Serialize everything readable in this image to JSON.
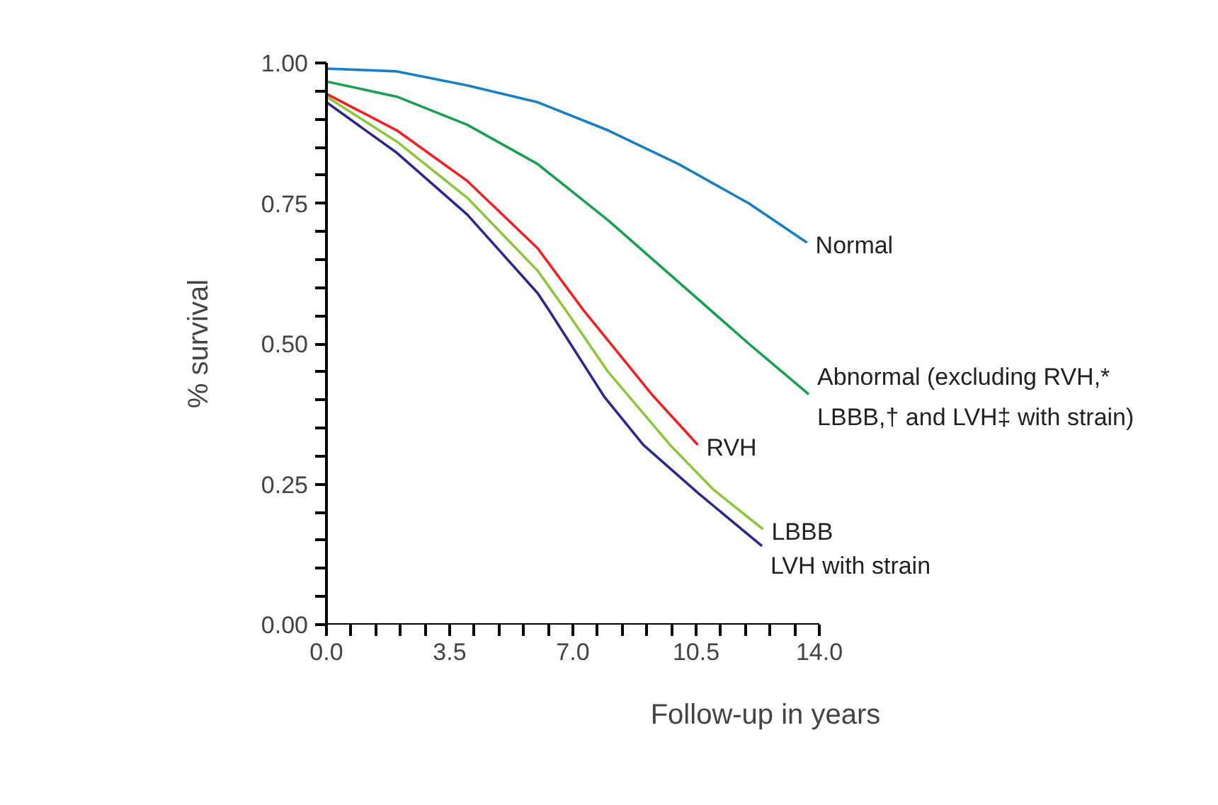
{
  "chart_data": {
    "type": "line",
    "xlabel": "Follow-up in years",
    "ylabel": "% survival",
    "xlim": [
      0,
      14
    ],
    "ylim": [
      0,
      1
    ],
    "xticks": [
      {
        "value": 0,
        "label": "0.0"
      },
      {
        "value": 0.7,
        "label": null
      },
      {
        "value": 1.4,
        "label": null
      },
      {
        "value": 2.1,
        "label": null
      },
      {
        "value": 2.8,
        "label": null
      },
      {
        "value": 3.5,
        "label": "3.5"
      },
      {
        "value": 4.2,
        "label": null
      },
      {
        "value": 4.9,
        "label": null
      },
      {
        "value": 5.6,
        "label": null
      },
      {
        "value": 6.3,
        "label": null
      },
      {
        "value": 7,
        "label": "7.0"
      },
      {
        "value": 7.7,
        "label": null
      },
      {
        "value": 8.4,
        "label": null
      },
      {
        "value": 9.1,
        "label": null
      },
      {
        "value": 9.8,
        "label": null
      },
      {
        "value": 10.5,
        "label": "10.5"
      },
      {
        "value": 11.2,
        "label": null
      },
      {
        "value": 11.9,
        "label": null
      },
      {
        "value": 12.6,
        "label": null
      },
      {
        "value": 13.3,
        "label": null
      },
      {
        "value": 14,
        "label": "14.0"
      }
    ],
    "yticks": [
      {
        "value": 0,
        "label": "0.00"
      },
      {
        "value": 0.05,
        "label": null
      },
      {
        "value": 0.1,
        "label": null
      },
      {
        "value": 0.15,
        "label": null
      },
      {
        "value": 0.2,
        "label": null
      },
      {
        "value": 0.25,
        "label": "0.25"
      },
      {
        "value": 0.3,
        "label": null
      },
      {
        "value": 0.35,
        "label": null
      },
      {
        "value": 0.4,
        "label": null
      },
      {
        "value": 0.45,
        "label": null
      },
      {
        "value": 0.5,
        "label": "0.50"
      },
      {
        "value": 0.55,
        "label": null
      },
      {
        "value": 0.6,
        "label": null
      },
      {
        "value": 0.65,
        "label": null
      },
      {
        "value": 0.7,
        "label": null
      },
      {
        "value": 0.75,
        "label": "0.75"
      },
      {
        "value": 0.8,
        "label": null
      },
      {
        "value": 0.85,
        "label": null
      },
      {
        "value": 0.9,
        "label": null
      },
      {
        "value": 0.95,
        "label": null
      },
      {
        "value": 1,
        "label": "1.00"
      }
    ],
    "grid": false,
    "marker": "none",
    "line_style": "solid",
    "series": [
      {
        "name": "Normal",
        "color": "#1a7fc1",
        "x": [
          0,
          2,
          4,
          6,
          8,
          10,
          12,
          13.65
        ],
        "values": [
          0.99,
          0.985,
          0.96,
          0.93,
          0.88,
          0.82,
          0.75,
          0.68
        ]
      },
      {
        "name": "Abnormal (excluding RVH,*\nLBBB,† and LVH‡ with strain)",
        "color": "#1aa050",
        "x": [
          0,
          2,
          4,
          6,
          8,
          10,
          12,
          13.7
        ],
        "values": [
          0.967,
          0.94,
          0.89,
          0.82,
          0.72,
          0.61,
          0.5,
          0.41
        ]
      },
      {
        "name": "RVH",
        "color": "#ee2222",
        "x": [
          0,
          2,
          4,
          6,
          7.3,
          9.24,
          10.55
        ],
        "values": [
          0.945,
          0.88,
          0.79,
          0.67,
          0.56,
          0.41,
          0.32
        ]
      },
      {
        "name": "LBBB",
        "color": "#8dc63f",
        "x": [
          0,
          2,
          4,
          6,
          6.83,
          8,
          9.76,
          11,
          12.4
        ],
        "values": [
          0.94,
          0.86,
          0.76,
          0.63,
          0.557,
          0.45,
          0.32,
          0.24,
          0.17
        ]
      },
      {
        "name": "LVH with strain",
        "color": "#2b2a8c",
        "x": [
          0,
          2,
          4,
          6,
          6.35,
          7.9,
          9,
          10.56,
          12.37
        ],
        "values": [
          0.93,
          0.84,
          0.73,
          0.59,
          0.557,
          0.405,
          0.32,
          0.234,
          0.14
        ]
      }
    ]
  }
}
